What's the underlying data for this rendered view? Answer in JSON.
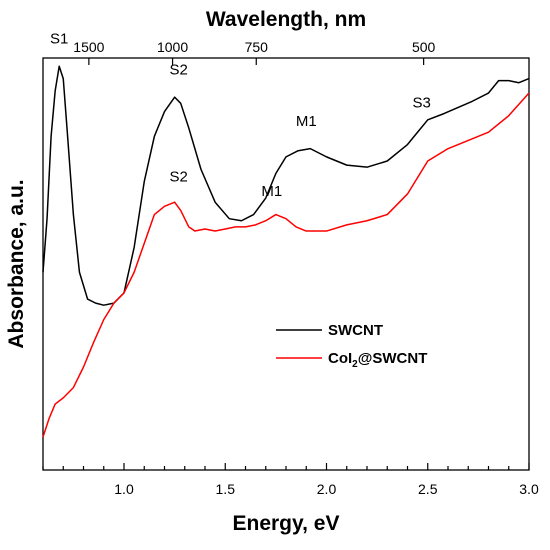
{
  "chart_data": {
    "type": "line",
    "xlabel": "Energy, eV",
    "ylabel": "Absorbance, a.u.",
    "top_axis_label": "Wavelength, nm",
    "xlim": [
      0.6,
      3.0
    ],
    "ylim": [
      0,
      100
    ],
    "x_ticks": [
      1.0,
      1.5,
      2.0,
      2.5,
      3.0
    ],
    "x_tick_labels": [
      "1.0",
      "1.5",
      "2.0",
      "2.5",
      "3.0"
    ],
    "top_ticks": [
      1500,
      1000,
      750,
      500
    ],
    "top_tick_labels": [
      "1500",
      "1000",
      "750",
      "500"
    ],
    "y_tick_labels": "none",
    "grid": false,
    "legend_position": "center-right",
    "series": [
      {
        "name": "SWCNT",
        "color": "#000000",
        "x": [
          0.6,
          0.62,
          0.64,
          0.66,
          0.68,
          0.7,
          0.72,
          0.75,
          0.78,
          0.82,
          0.86,
          0.9,
          0.95,
          1.0,
          1.05,
          1.1,
          1.15,
          1.2,
          1.25,
          1.28,
          1.32,
          1.38,
          1.45,
          1.52,
          1.58,
          1.64,
          1.7,
          1.75,
          1.8,
          1.86,
          1.92,
          2.0,
          2.1,
          2.2,
          2.3,
          2.4,
          2.45,
          2.5,
          2.58,
          2.65,
          2.72,
          2.8,
          2.85,
          2.9,
          2.95,
          3.0
        ],
        "values": [
          48.0,
          61.0,
          81.0,
          92.0,
          98.0,
          95.0,
          82.0,
          62.0,
          48.0,
          41.5,
          40.5,
          40.0,
          40.5,
          43.0,
          54.0,
          70.0,
          81.0,
          87.0,
          90.5,
          89.0,
          83.0,
          73.0,
          65.0,
          61.0,
          60.5,
          62.0,
          66.0,
          72.0,
          76.0,
          77.5,
          78.0,
          76.0,
          74.0,
          73.5,
          75.0,
          79.0,
          82.0,
          85.0,
          86.5,
          88.0,
          89.5,
          91.5,
          94.5,
          94.5,
          94.0,
          95.0
        ]
      },
      {
        "name": "CoI2@SWCNT",
        "color": "#ff0000",
        "x": [
          0.6,
          0.63,
          0.66,
          0.7,
          0.75,
          0.8,
          0.85,
          0.9,
          0.95,
          1.0,
          1.05,
          1.1,
          1.15,
          1.2,
          1.25,
          1.28,
          1.3,
          1.32,
          1.35,
          1.4,
          1.45,
          1.5,
          1.55,
          1.6,
          1.65,
          1.7,
          1.75,
          1.8,
          1.85,
          1.9,
          2.0,
          2.1,
          2.2,
          2.3,
          2.4,
          2.5,
          2.6,
          2.7,
          2.8,
          2.9,
          3.0
        ],
        "values": [
          8.0,
          12.5,
          16.0,
          17.5,
          20.0,
          25.0,
          31.0,
          36.5,
          40.5,
          43.0,
          48.0,
          55.0,
          62.0,
          64.0,
          65.0,
          63.0,
          61.0,
          59.0,
          58.0,
          58.5,
          58.0,
          58.5,
          59.0,
          59.0,
          59.5,
          60.5,
          62.0,
          61.0,
          59.0,
          58.0,
          58.0,
          59.5,
          60.5,
          62.0,
          67.0,
          75.0,
          78.0,
          80.0,
          82.0,
          86.0,
          91.5
        ]
      }
    ],
    "annotations": [
      {
        "text": "S1",
        "x": 0.68,
        "y": 103.5
      },
      {
        "text": "S2",
        "x": 1.27,
        "y": 96.0
      },
      {
        "text": "M1",
        "x": 1.9,
        "y": 83.5
      },
      {
        "text": "S3",
        "x": 2.47,
        "y": 88.0
      },
      {
        "text": "S2",
        "x": 1.27,
        "y": 70.0
      },
      {
        "text": "M1",
        "x": 1.73,
        "y": 66.5
      }
    ],
    "legend": [
      {
        "label": "SWCNT",
        "color": "#000000"
      },
      {
        "label_main": "CoI",
        "label_sub": "2",
        "label_rest": "@SWCNT",
        "color": "#ff0000"
      }
    ]
  }
}
